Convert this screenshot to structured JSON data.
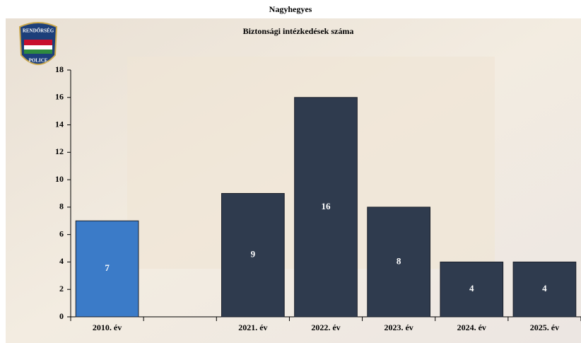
{
  "chart_data": {
    "type": "bar",
    "title": "Nagyhegyes",
    "subtitle": "Biztonsági intézkedések száma",
    "categories": [
      "2010. év",
      null,
      "2021. év",
      "2022. év",
      "2023. év",
      "2024. év",
      "2025. év"
    ],
    "values": [
      7,
      null,
      9,
      16,
      8,
      4,
      4
    ],
    "colors": [
      "#3b7bc8",
      null,
      "#2f3b4e",
      "#2f3b4e",
      "#2f3b4e",
      "#2f3b4e",
      "#2f3b4e"
    ],
    "ylim": [
      0,
      18
    ],
    "yticks": [
      0,
      2,
      4,
      6,
      8,
      10,
      12,
      14,
      16,
      18
    ],
    "grid": false
  },
  "logo": {
    "top": "RENDŐRSÉG",
    "bottom": "POLICE"
  }
}
